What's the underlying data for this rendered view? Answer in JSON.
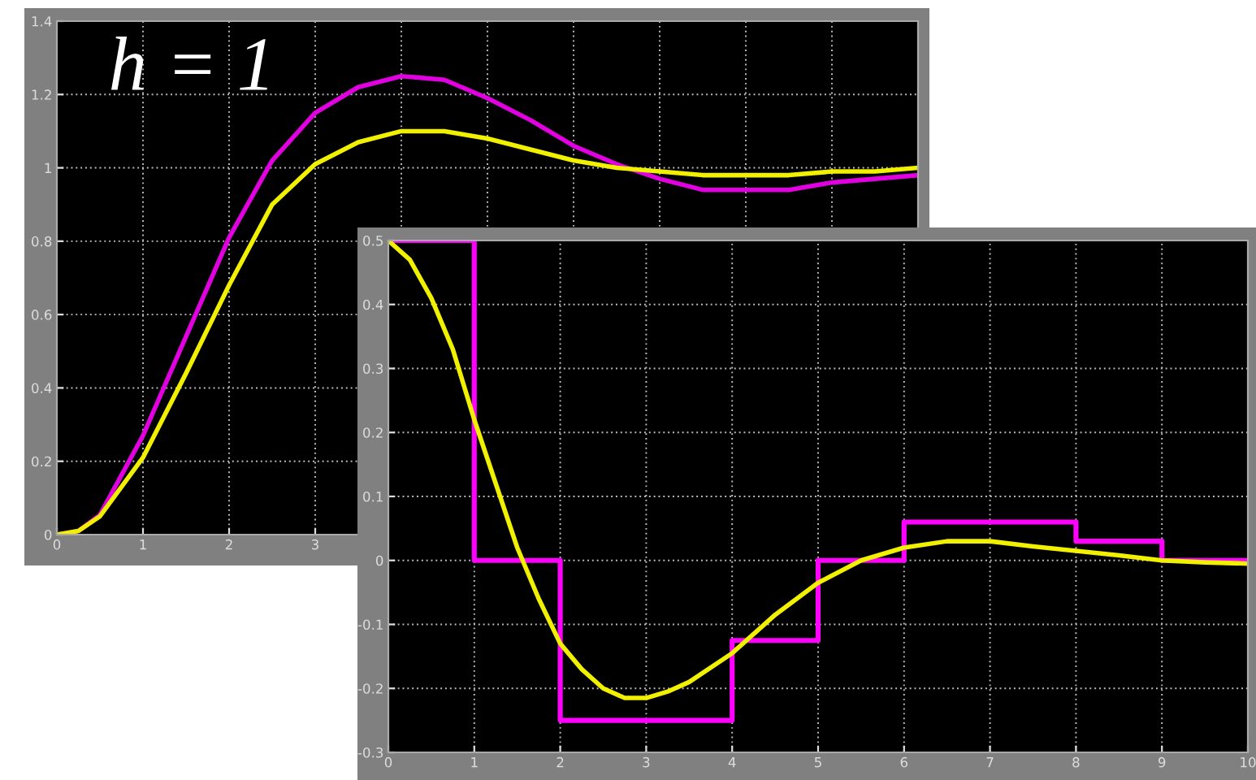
{
  "chart_data": [
    {
      "type": "line",
      "annotations": [
        "h = 1"
      ],
      "xlim": [
        0,
        10
      ],
      "ylim": [
        0,
        1.4
      ],
      "xticks": [
        0,
        1,
        2,
        3,
        {
          "value": 4,
          "label": null
        },
        {
          "value": 5,
          "label": null
        },
        {
          "value": 6,
          "label": null
        },
        {
          "value": 7,
          "label": null
        },
        {
          "value": 8,
          "label": null
        },
        {
          "value": 9,
          "label": null
        },
        {
          "value": 10,
          "label": null
        }
      ],
      "yticks": [
        0,
        0.2,
        0.4,
        0.6,
        0.8,
        1,
        1.2,
        1.4
      ],
      "grid": true,
      "x": [
        0,
        0.25,
        0.5,
        1,
        1.5,
        2,
        2.5,
        3,
        3.5,
        4,
        4.5,
        5,
        5.5,
        6,
        6.5,
        7,
        7.5,
        8,
        8.5,
        9,
        9.5,
        10
      ],
      "series": [
        {
          "color": "#e000e0",
          "values": [
            0,
            0.01,
            0.054,
            0.27,
            0.54,
            0.81,
            1.02,
            1.15,
            1.22,
            1.25,
            1.24,
            1.19,
            1.13,
            1.06,
            1.01,
            0.97,
            0.94,
            0.94,
            0.94,
            0.96,
            0.97,
            0.98
          ]
        },
        {
          "color": "#f0f000",
          "values": [
            0,
            0.01,
            0.05,
            0.21,
            0.44,
            0.68,
            0.9,
            1.01,
            1.07,
            1.1,
            1.1,
            1.08,
            1.05,
            1.02,
            1.0,
            0.99,
            0.98,
            0.98,
            0.98,
            0.99,
            0.99,
            1.0
          ]
        }
      ]
    },
    {
      "type": "line",
      "xlim": [
        0,
        10
      ],
      "ylim": [
        -0.3,
        0.5
      ],
      "xticks": [
        0,
        1,
        2,
        3,
        4,
        5,
        6,
        7,
        8,
        9,
        10
      ],
      "yticks": [
        {
          "value": -0.3,
          "label": "-0.3"
        },
        {
          "value": -0.2,
          "label": "-0.2"
        },
        {
          "value": -0.1,
          "label": "-0.1"
        },
        0,
        0.1,
        0.2,
        0.3,
        0.4,
        0.5
      ],
      "grid": true,
      "series": [
        {
          "type": "step",
          "color": "#ff00ff",
          "x": [
            0,
            1,
            2,
            3,
            4,
            5,
            6,
            7,
            8,
            9,
            10
          ],
          "values": [
            0.5,
            0,
            -0.25,
            -0.25,
            -0.125,
            0,
            0.06,
            0.06,
            0.03,
            0,
            0
          ]
        },
        {
          "color": "#f0f000",
          "x": [
            0,
            0.25,
            0.5,
            0.75,
            1,
            1.25,
            1.5,
            1.75,
            2,
            2.25,
            2.5,
            2.75,
            3,
            3.25,
            3.5,
            4,
            4.5,
            5,
            5.5,
            6,
            6.5,
            7,
            7.5,
            8,
            8.5,
            9,
            9.5,
            10
          ],
          "values": [
            0.5,
            0.47,
            0.41,
            0.33,
            0.22,
            0.12,
            0.02,
            -0.06,
            -0.13,
            -0.17,
            -0.2,
            -0.215,
            -0.215,
            -0.205,
            -0.19,
            -0.145,
            -0.085,
            -0.035,
            0.0,
            0.02,
            0.03,
            0.03,
            0.022,
            0.015,
            0.008,
            0.0,
            -0.003,
            -0.005
          ]
        }
      ]
    }
  ]
}
